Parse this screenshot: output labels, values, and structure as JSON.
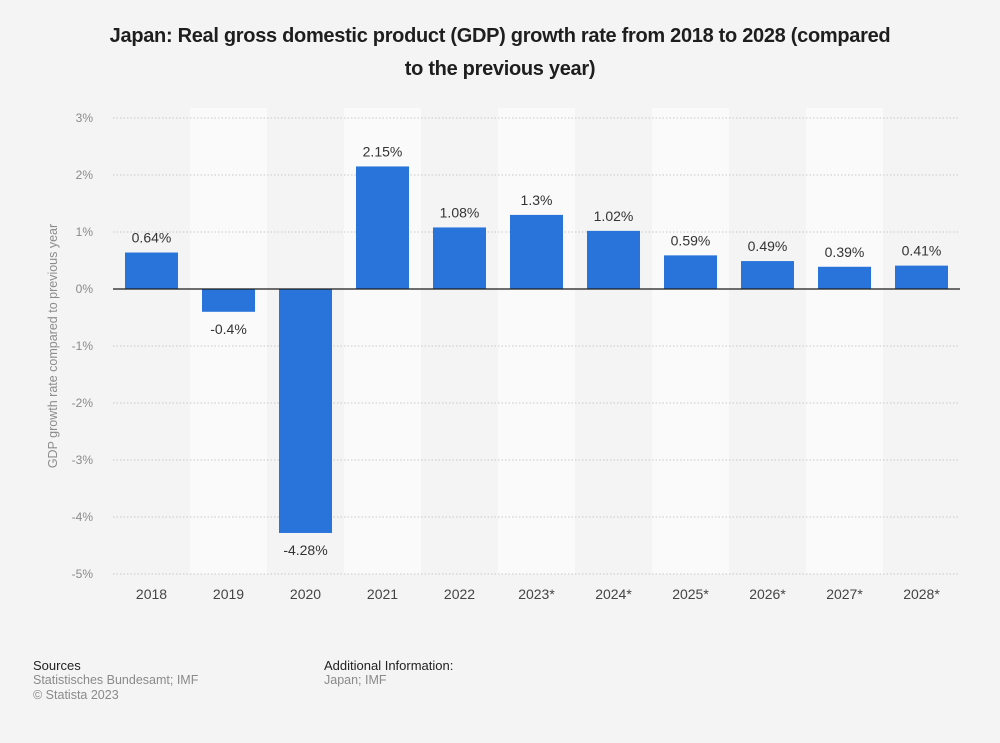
{
  "chart_data": {
    "type": "bar",
    "title": "Japan: Real gross domestic product (GDP) growth rate from 2018 to 2028 (compared to the previous year)",
    "title_lines": [
      "Japan: Real gross domestic product (GDP) growth rate from 2018 to 2028 (compared",
      "to the previous year)"
    ],
    "xlabel": "",
    "ylabel": "GDP growth rate compared to previous year",
    "categories": [
      "2018",
      "2019",
      "2020",
      "2021",
      "2022",
      "2023*",
      "2024*",
      "2025*",
      "2026*",
      "2027*",
      "2028*"
    ],
    "values": [
      0.64,
      -0.4,
      -4.28,
      2.15,
      1.08,
      1.3,
      1.02,
      0.59,
      0.49,
      0.39,
      0.41
    ],
    "data_labels": [
      "0.64%",
      "-0.4%",
      "-4.28%",
      "2.15%",
      "1.08%",
      "1.3%",
      "1.02%",
      "0.59%",
      "0.49%",
      "0.39%",
      "0.41%"
    ],
    "ylim": [
      -5,
      3
    ],
    "yticks": [
      3,
      2,
      1,
      0,
      -1,
      -2,
      -3,
      -4,
      -5
    ],
    "ytick_labels": [
      "3%",
      "2%",
      "1%",
      "0%",
      "-1%",
      "-2%",
      "-3%",
      "-4%",
      "-5%"
    ],
    "grid": true,
    "legend": "none",
    "bar_color": "#2874db"
  },
  "footer": {
    "sources_heading": "Sources",
    "sources_text": "Statistisches Bundesamt; IMF",
    "copyright": "© Statista 2023",
    "additional_heading": "Additional Information:",
    "additional_text": "Japan; IMF"
  }
}
